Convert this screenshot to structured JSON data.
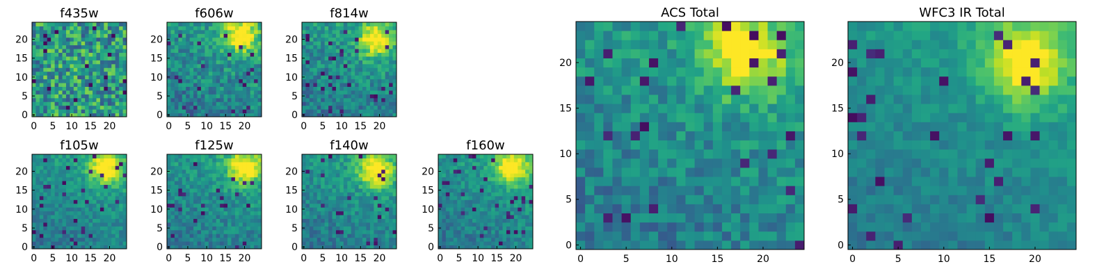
{
  "figure": {
    "colormap": "viridis",
    "colors": {
      "low": "#440154",
      "mid": "#21918c",
      "high": "#fde725",
      "frame": "#000000",
      "background": "#ffffff"
    }
  },
  "chart_data": [
    {
      "type": "heatmap",
      "title": "f435w",
      "grid": [
        25,
        25
      ],
      "xlim": [
        0,
        24
      ],
      "ylim": [
        0,
        24
      ],
      "xticks": [
        "0",
        "5",
        "10",
        "15",
        "20"
      ],
      "yticks": [
        "0",
        "5",
        "10",
        "15",
        "20"
      ],
      "pattern": "uniform",
      "noise_level": 0.75,
      "peak_value": 0.78,
      "peak_center": [
        18,
        20
      ],
      "grid_lines": false
    },
    {
      "type": "heatmap",
      "title": "f606w",
      "grid": [
        25,
        25
      ],
      "xlim": [
        0,
        24
      ],
      "ylim": [
        0,
        24
      ],
      "xticks": [
        "0",
        "5",
        "10",
        "15",
        "20"
      ],
      "yticks": [
        "0",
        "5",
        "10",
        "15",
        "20"
      ],
      "pattern": "peak",
      "noise_level": 0.6,
      "peak_value": 0.95,
      "peak_center": [
        19,
        21
      ],
      "grid_lines": false
    },
    {
      "type": "heatmap",
      "title": "f814w",
      "grid": [
        25,
        25
      ],
      "xlim": [
        0,
        24
      ],
      "ylim": [
        0,
        24
      ],
      "xticks": [
        "0",
        "5",
        "10",
        "15",
        "20"
      ],
      "yticks": [
        "0",
        "5",
        "10",
        "15",
        "20"
      ],
      "pattern": "peak",
      "noise_level": 0.55,
      "peak_value": 0.97,
      "peak_center": [
        19,
        20
      ],
      "grid_lines": false
    },
    {
      "type": "heatmap",
      "title": "f105w",
      "grid": [
        25,
        25
      ],
      "xlim": [
        0,
        24
      ],
      "ylim": [
        0,
        24
      ],
      "xticks": [
        "0",
        "5",
        "10",
        "15",
        "20"
      ],
      "yticks": [
        "0",
        "5",
        "10",
        "15",
        "20"
      ],
      "pattern": "peak",
      "noise_level": 0.4,
      "peak_value": 1.0,
      "peak_center": [
        19,
        21
      ],
      "grid_lines": false
    },
    {
      "type": "heatmap",
      "title": "f125w",
      "grid": [
        25,
        25
      ],
      "xlim": [
        0,
        24
      ],
      "ylim": [
        0,
        24
      ],
      "xticks": [
        "0",
        "5",
        "10",
        "15",
        "20"
      ],
      "yticks": [
        "0",
        "5",
        "10",
        "15",
        "20"
      ],
      "pattern": "peak",
      "noise_level": 0.45,
      "peak_value": 1.0,
      "peak_center": [
        20,
        21
      ],
      "grid_lines": false
    },
    {
      "type": "heatmap",
      "title": "f140w",
      "grid": [
        25,
        25
      ],
      "xlim": [
        0,
        24
      ],
      "ylim": [
        0,
        24
      ],
      "xticks": [
        "0",
        "5",
        "10",
        "15",
        "20"
      ],
      "yticks": [
        "0",
        "5",
        "10",
        "15",
        "20"
      ],
      "pattern": "peak",
      "noise_level": 0.45,
      "peak_value": 1.0,
      "peak_center": [
        19,
        20
      ],
      "grid_lines": false
    },
    {
      "type": "heatmap",
      "title": "f160w",
      "grid": [
        25,
        25
      ],
      "xlim": [
        0,
        24
      ],
      "ylim": [
        0,
        24
      ],
      "xticks": [
        "0",
        "5",
        "10",
        "15",
        "20"
      ],
      "yticks": [
        "0",
        "5",
        "10",
        "15",
        "20"
      ],
      "pattern": "peak",
      "noise_level": 0.4,
      "peak_value": 1.0,
      "peak_center": [
        19,
        21
      ],
      "grid_lines": false
    },
    {
      "type": "heatmap",
      "title": "ACS Total",
      "grid": [
        25,
        25
      ],
      "xlim": [
        0,
        24
      ],
      "ylim": [
        0,
        24
      ],
      "xticks": [
        "0",
        "5",
        "10",
        "15",
        "20"
      ],
      "yticks": [
        "0",
        "5",
        "10",
        "15",
        "20"
      ],
      "pattern": "peak",
      "noise_level": 0.5,
      "peak_value": 0.97,
      "peak_center": [
        18,
        21
      ],
      "grid_lines": false
    },
    {
      "type": "heatmap",
      "title": "WFC3 IR Total",
      "grid": [
        25,
        25
      ],
      "xlim": [
        0,
        24
      ],
      "ylim": [
        0,
        24
      ],
      "xticks": [
        "0",
        "5",
        "10",
        "15",
        "20"
      ],
      "yticks": [
        "0",
        "5",
        "10",
        "15",
        "20"
      ],
      "pattern": "peak",
      "noise_level": 0.3,
      "peak_value": 1.0,
      "peak_center": [
        19,
        20
      ],
      "grid_lines": false
    }
  ]
}
